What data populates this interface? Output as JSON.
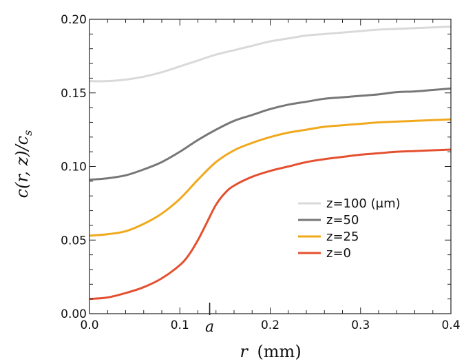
{
  "chart_data": {
    "type": "line",
    "xlabel_parts": {
      "var": "r",
      "unit": "(mm)"
    },
    "ylabel_parts": {
      "pre": "c(r, z)/c",
      "sub": "s"
    },
    "xlim": [
      0.0,
      0.4
    ],
    "ylim": [
      0.0,
      0.2
    ],
    "x_ticks": [
      0.0,
      0.1,
      0.2,
      0.3,
      0.4
    ],
    "x_tick_labels": [
      "0.0",
      "0.1",
      "0.2",
      "0.3",
      "0.4"
    ],
    "y_ticks": [
      0.0,
      0.05,
      0.1,
      0.15,
      0.2
    ],
    "y_tick_labels": [
      "0.00",
      "0.05",
      "0.10",
      "0.15",
      "0.20"
    ],
    "annotation": {
      "label": "a",
      "x": 0.133
    },
    "legend_position": "lower-right",
    "grid": false,
    "series": [
      {
        "name": "z=100 (μm)",
        "color": "#d9d9d9",
        "x": [
          0.0,
          0.02,
          0.04,
          0.06,
          0.08,
          0.1,
          0.12,
          0.14,
          0.16,
          0.18,
          0.2,
          0.22,
          0.24,
          0.26,
          0.28,
          0.3,
          0.32,
          0.34,
          0.36,
          0.38,
          0.4
        ],
        "y": [
          0.158,
          0.158,
          0.159,
          0.161,
          0.164,
          0.168,
          0.172,
          0.176,
          0.179,
          0.182,
          0.185,
          0.187,
          0.189,
          0.19,
          0.191,
          0.192,
          0.193,
          0.1935,
          0.194,
          0.1945,
          0.195
        ]
      },
      {
        "name": "z=50",
        "color": "#777777",
        "x": [
          0.0,
          0.02,
          0.04,
          0.06,
          0.08,
          0.1,
          0.12,
          0.14,
          0.16,
          0.18,
          0.2,
          0.22,
          0.24,
          0.26,
          0.28,
          0.3,
          0.32,
          0.34,
          0.36,
          0.38,
          0.4
        ],
        "y": [
          0.091,
          0.092,
          0.094,
          0.098,
          0.103,
          0.11,
          0.118,
          0.125,
          0.131,
          0.135,
          0.139,
          0.142,
          0.144,
          0.146,
          0.147,
          0.148,
          0.149,
          0.1505,
          0.151,
          0.152,
          0.153
        ]
      },
      {
        "name": "z=25",
        "color": "#f0a81c",
        "x": [
          0.0,
          0.02,
          0.04,
          0.06,
          0.08,
          0.1,
          0.12,
          0.14,
          0.16,
          0.18,
          0.2,
          0.22,
          0.24,
          0.26,
          0.28,
          0.3,
          0.32,
          0.34,
          0.36,
          0.38,
          0.4
        ],
        "y": [
          0.053,
          0.054,
          0.056,
          0.061,
          0.068,
          0.078,
          0.091,
          0.103,
          0.111,
          0.116,
          0.12,
          0.123,
          0.125,
          0.127,
          0.128,
          0.129,
          0.13,
          0.1305,
          0.131,
          0.1315,
          0.132
        ]
      },
      {
        "name": "z=0",
        "color": "#e4502f",
        "x": [
          0.0,
          0.02,
          0.04,
          0.06,
          0.08,
          0.1,
          0.11,
          0.12,
          0.13,
          0.14,
          0.15,
          0.16,
          0.18,
          0.2,
          0.22,
          0.24,
          0.26,
          0.28,
          0.3,
          0.32,
          0.34,
          0.36,
          0.38,
          0.4
        ],
        "y": [
          0.01,
          0.011,
          0.014,
          0.018,
          0.024,
          0.033,
          0.04,
          0.05,
          0.062,
          0.074,
          0.082,
          0.087,
          0.093,
          0.097,
          0.1,
          0.103,
          0.105,
          0.1065,
          0.108,
          0.109,
          0.11,
          0.1105,
          0.111,
          0.1115
        ]
      }
    ]
  }
}
